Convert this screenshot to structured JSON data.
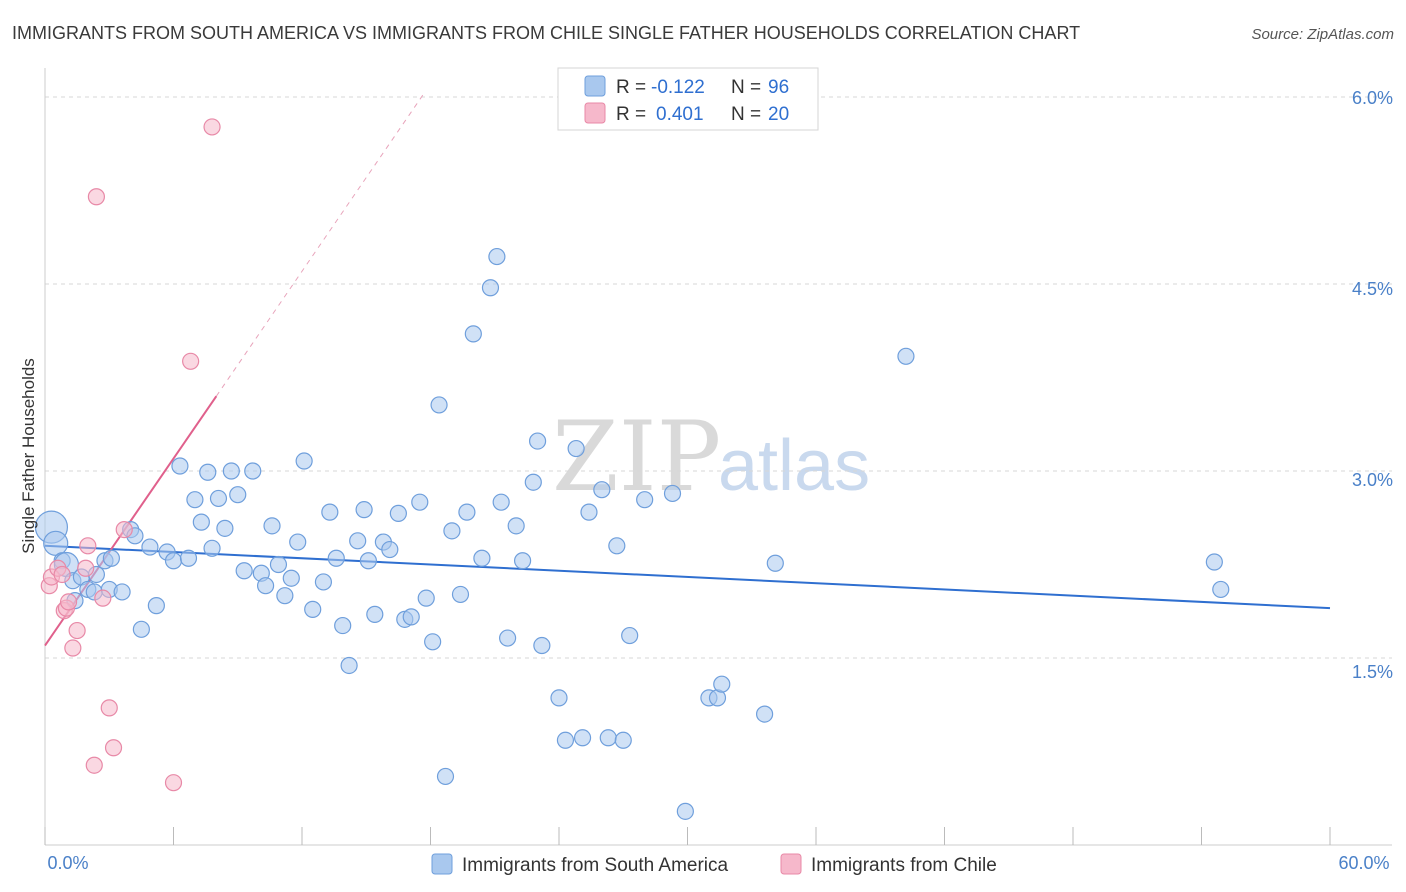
{
  "title": "IMMIGRANTS FROM SOUTH AMERICA VS IMMIGRANTS FROM CHILE SINGLE FATHER HOUSEHOLDS CORRELATION CHART",
  "source": "Source: ZipAtlas.com",
  "watermark": {
    "zip": "ZIP",
    "atlas": "atlas"
  },
  "legend": {
    "r_label": "R =",
    "n_label": "N =",
    "rows": [
      {
        "r": "-0.122",
        "n": "96"
      },
      {
        "r": "0.401",
        "n": "20"
      }
    ]
  },
  "colors": {
    "series1_fill": "#a9c8ee",
    "series1_stroke": "#6f9fdc",
    "series1_line": "#2f6fd0",
    "series2_fill": "#f6b8cb",
    "series2_stroke": "#e889a7",
    "series2_line": "#e0608c",
    "grid": "#d7d7d7"
  },
  "chart_data": {
    "type": "scatter",
    "title": "IMMIGRANTS FROM SOUTH AMERICA VS IMMIGRANTS FROM CHILE SINGLE FATHER HOUSEHOLDS CORRELATION CHART",
    "xlabel": "",
    "ylabel": "Single Father Households",
    "xlim": [
      0,
      60
    ],
    "ylim": [
      0,
      6.2
    ],
    "x_tick_labels": [
      "0.0%",
      "60.0%"
    ],
    "y_ticks": [
      1.5,
      3.0,
      4.5,
      6.0
    ],
    "y_tick_labels": [
      "1.5%",
      "3.0%",
      "4.5%",
      "6.0%"
    ],
    "grid": true,
    "legend_position": "top-center",
    "series": [
      {
        "name": "Immigrants from South America",
        "r": -0.122,
        "n": 96,
        "trend": {
          "x0": 0,
          "y0": 2.4,
          "x1": 60,
          "y1": 1.9
        },
        "points": [
          [
            0.3,
            2.55
          ],
          [
            0.5,
            2.42
          ],
          [
            0.8,
            2.28
          ],
          [
            1.0,
            2.25
          ],
          [
            1.3,
            2.12
          ],
          [
            1.4,
            1.96
          ],
          [
            1.7,
            2.15
          ],
          [
            2.0,
            2.05
          ],
          [
            2.3,
            2.03
          ],
          [
            2.4,
            2.17
          ],
          [
            2.8,
            2.28
          ],
          [
            3.0,
            2.05
          ],
          [
            3.1,
            2.3
          ],
          [
            3.6,
            2.03
          ],
          [
            4.0,
            2.53
          ],
          [
            4.2,
            2.48
          ],
          [
            4.5,
            1.73
          ],
          [
            4.9,
            2.39
          ],
          [
            5.2,
            1.92
          ],
          [
            5.7,
            2.35
          ],
          [
            6.0,
            2.28
          ],
          [
            6.3,
            3.04
          ],
          [
            6.7,
            2.3
          ],
          [
            7.0,
            2.77
          ],
          [
            7.3,
            2.59
          ],
          [
            7.6,
            2.99
          ],
          [
            7.8,
            2.38
          ],
          [
            8.1,
            2.78
          ],
          [
            8.4,
            2.54
          ],
          [
            8.7,
            3.0
          ],
          [
            9.0,
            2.81
          ],
          [
            9.3,
            2.2
          ],
          [
            9.7,
            3.0
          ],
          [
            10.1,
            2.18
          ],
          [
            10.3,
            2.08
          ],
          [
            10.6,
            2.56
          ],
          [
            10.9,
            2.25
          ],
          [
            11.2,
            2.0
          ],
          [
            11.5,
            2.14
          ],
          [
            11.8,
            2.43
          ],
          [
            12.1,
            3.08
          ],
          [
            12.5,
            1.89
          ],
          [
            13.0,
            2.11
          ],
          [
            13.3,
            2.67
          ],
          [
            13.6,
            2.3
          ],
          [
            13.9,
            1.76
          ],
          [
            14.2,
            1.44
          ],
          [
            14.6,
            2.44
          ],
          [
            14.9,
            2.69
          ],
          [
            15.1,
            2.28
          ],
          [
            15.4,
            1.85
          ],
          [
            15.8,
            2.43
          ],
          [
            16.1,
            2.37
          ],
          [
            16.5,
            2.66
          ],
          [
            16.8,
            1.81
          ],
          [
            17.1,
            1.83
          ],
          [
            17.5,
            2.75
          ],
          [
            17.8,
            1.98
          ],
          [
            18.1,
            1.63
          ],
          [
            18.4,
            3.53
          ],
          [
            18.7,
            0.55
          ],
          [
            19.0,
            2.52
          ],
          [
            19.4,
            2.01
          ],
          [
            19.7,
            2.67
          ],
          [
            20.0,
            4.1
          ],
          [
            20.4,
            2.3
          ],
          [
            20.8,
            4.47
          ],
          [
            21.1,
            4.72
          ],
          [
            21.3,
            2.75
          ],
          [
            21.6,
            1.66
          ],
          [
            22.0,
            2.56
          ],
          [
            22.3,
            2.28
          ],
          [
            22.8,
            2.91
          ],
          [
            23.0,
            3.24
          ],
          [
            23.2,
            1.6
          ],
          [
            24.0,
            1.18
          ],
          [
            24.3,
            0.84
          ],
          [
            24.8,
            3.18
          ],
          [
            25.1,
            0.86
          ],
          [
            25.4,
            2.67
          ],
          [
            26.0,
            2.85
          ],
          [
            26.3,
            0.86
          ],
          [
            26.7,
            2.4
          ],
          [
            27.0,
            0.84
          ],
          [
            27.3,
            1.68
          ],
          [
            28.0,
            2.77
          ],
          [
            29.3,
            2.82
          ],
          [
            29.9,
            0.27
          ],
          [
            31.0,
            1.18
          ],
          [
            31.4,
            1.18
          ],
          [
            31.6,
            1.29
          ],
          [
            33.6,
            1.05
          ],
          [
            34.1,
            2.26
          ],
          [
            40.2,
            3.92
          ],
          [
            54.6,
            2.27
          ],
          [
            54.9,
            2.05
          ]
        ]
      },
      {
        "name": "Immigrants from Chile",
        "r": 0.401,
        "n": 20,
        "trend": {
          "x0": 0,
          "y0": 1.6,
          "x1": 8.0,
          "y1": 3.6,
          "dash_x1": 17.7,
          "dash_y1": 6.03
        },
        "points": [
          [
            0.2,
            2.08
          ],
          [
            0.3,
            2.15
          ],
          [
            0.6,
            2.22
          ],
          [
            0.8,
            2.17
          ],
          [
            0.9,
            1.88
          ],
          [
            1.0,
            1.9
          ],
          [
            1.1,
            1.95
          ],
          [
            1.3,
            1.58
          ],
          [
            1.5,
            1.72
          ],
          [
            1.9,
            2.22
          ],
          [
            2.0,
            2.4
          ],
          [
            2.3,
            0.64
          ],
          [
            2.4,
            5.2
          ],
          [
            2.7,
            1.98
          ],
          [
            3.0,
            1.1
          ],
          [
            3.2,
            0.78
          ],
          [
            3.7,
            2.53
          ],
          [
            6.0,
            0.5
          ],
          [
            6.8,
            3.88
          ],
          [
            7.8,
            5.76
          ]
        ]
      }
    ]
  },
  "bottom_legend": {
    "series1_label": "Immigrants from South America",
    "series2_label": "Immigrants from Chile"
  }
}
